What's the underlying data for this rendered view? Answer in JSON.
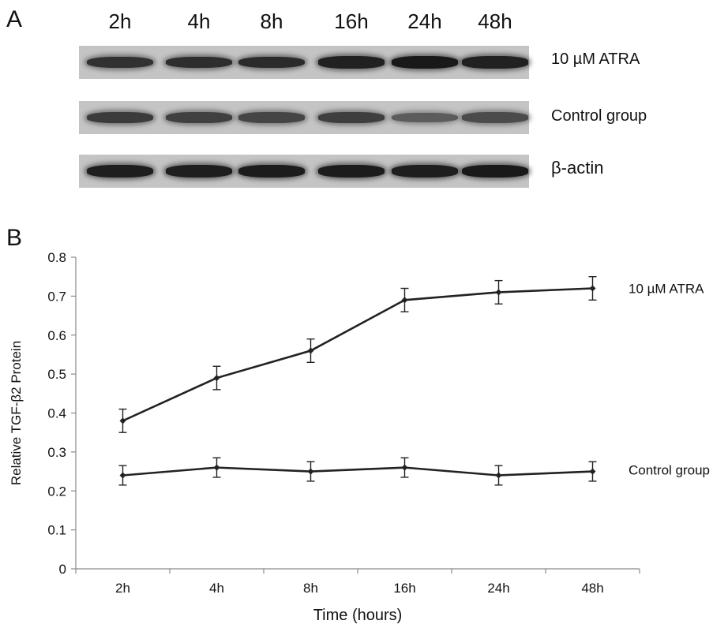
{
  "panel_a": {
    "letter": "A",
    "lanes": [
      "2h",
      "4h",
      "8h",
      "16h",
      "24h",
      "48h"
    ],
    "rows": [
      {
        "label": "10 µM ATRA",
        "intensity": [
          0.78,
          0.8,
          0.82,
          0.9,
          0.96,
          0.9
        ]
      },
      {
        "label": "Control group",
        "intensity": [
          0.7,
          0.66,
          0.62,
          0.68,
          0.45,
          0.58
        ]
      },
      {
        "label": "β-actin",
        "intensity": [
          0.92,
          0.92,
          0.94,
          0.94,
          0.92,
          0.96
        ]
      }
    ]
  },
  "panel_b": {
    "letter": "B"
  },
  "chart_data": {
    "type": "line",
    "categories": [
      "2h",
      "4h",
      "8h",
      "16h",
      "24h",
      "48h"
    ],
    "series": [
      {
        "name": "10 µM ATRA",
        "values": [
          0.38,
          0.49,
          0.56,
          0.69,
          0.71,
          0.72
        ],
        "errors": [
          0.03,
          0.03,
          0.03,
          0.03,
          0.03,
          0.03
        ]
      },
      {
        "name": "Control group",
        "values": [
          0.24,
          0.26,
          0.25,
          0.26,
          0.24,
          0.25
        ],
        "errors": [
          0.025,
          0.025,
          0.025,
          0.025,
          0.025,
          0.025
        ]
      }
    ],
    "xlabel": "Time (hours)",
    "ylabel": "Relative TGF-β2 Protein",
    "ylim": [
      0,
      0.8
    ],
    "yticks": [
      "0",
      "0.1",
      "0.2",
      "0.3",
      "0.4",
      "0.5",
      "0.6",
      "0.7",
      "0.8"
    ],
    "legend": "series labels at right end of lines",
    "grid": false
  }
}
